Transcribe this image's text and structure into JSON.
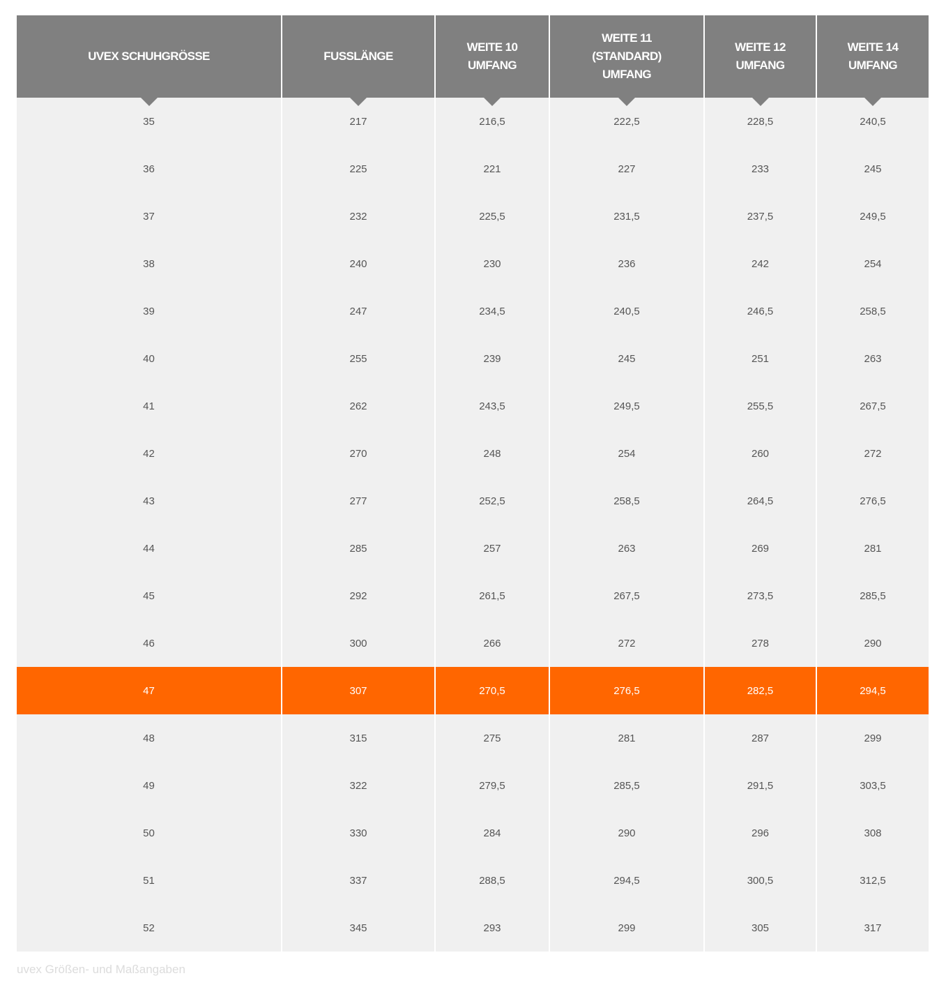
{
  "table": {
    "headers": [
      "UVEX SCHUHGRÖSSE",
      "FUSSLÄNGE",
      "WEITE 10\nUMFANG",
      "WEITE 11\n(STANDARD)\nUMFANG",
      "WEITE 12\nUMFANG",
      "WEITE 14\nUMFANG"
    ],
    "highlight_row": "47",
    "colors": {
      "header_bg": "#808080",
      "row_bg": "#f0f0f0",
      "highlight_bg": "#ff6600",
      "text": "#555555"
    },
    "rows": [
      [
        "35",
        "217",
        "216,5",
        "222,5",
        "228,5",
        "240,5"
      ],
      [
        "36",
        "225",
        "221",
        "227",
        "233",
        "245"
      ],
      [
        "37",
        "232",
        "225,5",
        "231,5",
        "237,5",
        "249,5"
      ],
      [
        "38",
        "240",
        "230",
        "236",
        "242",
        "254"
      ],
      [
        "39",
        "247",
        "234,5",
        "240,5",
        "246,5",
        "258,5"
      ],
      [
        "40",
        "255",
        "239",
        "245",
        "251",
        "263"
      ],
      [
        "41",
        "262",
        "243,5",
        "249,5",
        "255,5",
        "267,5"
      ],
      [
        "42",
        "270",
        "248",
        "254",
        "260",
        "272"
      ],
      [
        "43",
        "277",
        "252,5",
        "258,5",
        "264,5",
        "276,5"
      ],
      [
        "44",
        "285",
        "257",
        "263",
        "269",
        "281"
      ],
      [
        "45",
        "292",
        "261,5",
        "267,5",
        "273,5",
        "285,5"
      ],
      [
        "46",
        "300",
        "266",
        "272",
        "278",
        "290"
      ],
      [
        "47",
        "307",
        "270,5",
        "276,5",
        "282,5",
        "294,5"
      ],
      [
        "48",
        "315",
        "275",
        "281",
        "287",
        "299"
      ],
      [
        "49",
        "322",
        "279,5",
        "285,5",
        "291,5",
        "303,5"
      ],
      [
        "50",
        "330",
        "284",
        "290",
        "296",
        "308"
      ],
      [
        "51",
        "337",
        "288,5",
        "294,5",
        "300,5",
        "312,5"
      ],
      [
        "52",
        "345",
        "293",
        "299",
        "305",
        "317"
      ]
    ]
  },
  "caption": "uvex Größen- und Maßangaben"
}
